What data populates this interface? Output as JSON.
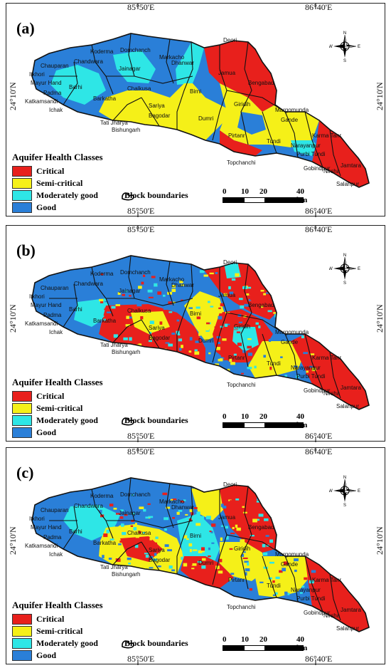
{
  "panels": [
    {
      "label": "(a)",
      "top": "85°50'E",
      "top2": "86°40'E",
      "bottom": "85°50'E",
      "bottom2": "86°40'E",
      "left": "24°10'N",
      "right": "24°10'N"
    },
    {
      "label": "(b)",
      "top": "85°50'E",
      "top2": "86°40'E",
      "bottom": "85°50'E",
      "bottom2": "86°40'E",
      "left": "24°10'N",
      "right": "24°10'N"
    },
    {
      "label": "(c)",
      "top": "85°50'E",
      "top2": "86°40'E",
      "bottom": "85°50'E",
      "bottom2": "86°40'E",
      "left": "24°10'N",
      "right": "24°10'N"
    }
  ],
  "legend": {
    "title": "Aquifer Health Classes",
    "classes": [
      {
        "name": "Critical",
        "color": "#e8201c"
      },
      {
        "name": "Semi-critical",
        "color": "#f5f018"
      },
      {
        "name": "Moderately good",
        "color": "#2ee6e6"
      },
      {
        "name": "Good",
        "color": "#2a7fd8"
      }
    ],
    "block_boundaries": "Block boundaries"
  },
  "scale": {
    "t0": "0",
    "t1": "10",
    "t2": "20",
    "t3": "40 km"
  },
  "compass": {
    "n": "N",
    "s": "S",
    "e": "E",
    "w": "W"
  },
  "blocks": [
    "Deori",
    "Koderma",
    "Domchanch",
    "Markacho",
    "Dhanwar",
    "Jamua",
    "Bengabad",
    "Chandwara",
    "Chauparan",
    "Itkhori",
    "Mayur Hand",
    "Barhi",
    "Jainagar",
    "Padma",
    "Katkamsandi",
    "Ichak",
    "Barkatha",
    "Chalkusa",
    "Birni",
    "Giridih",
    "Margomunda",
    "Gande",
    "Sariya",
    "Bagodar",
    "Tati Jharya",
    "Bishungarh",
    "Dumri",
    "Pirtanr",
    "Tundi",
    "Karma Tanr",
    "Narayanpur",
    "Topchanchi",
    "Purbi Tundi",
    "Gobindpur",
    "Nirsha",
    "Jamtara",
    "Salanpur"
  ]
}
